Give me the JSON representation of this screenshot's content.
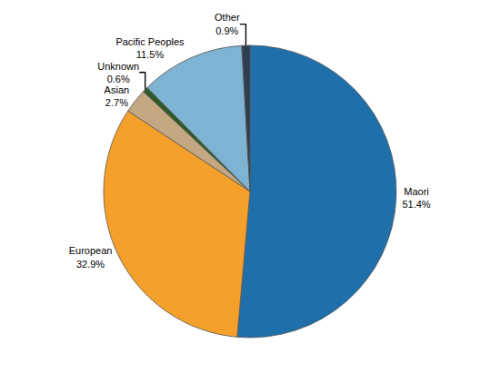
{
  "chart_data": {
    "type": "pie",
    "categories": [
      "Maori",
      "European",
      "Asian",
      "Unknown",
      "Pacific Peoples",
      "Other"
    ],
    "values": [
      51.4,
      32.9,
      2.7,
      0.6,
      11.5,
      0.9
    ],
    "value_labels": [
      "51.4%",
      "32.9%",
      "2.7%",
      "0.6%",
      "11.5%",
      "0.9%"
    ],
    "colors": [
      "#1F6FAB",
      "#F5A02A",
      "#C4A882",
      "#2D5A27",
      "#7FB3D3",
      "#2C3E50"
    ]
  }
}
